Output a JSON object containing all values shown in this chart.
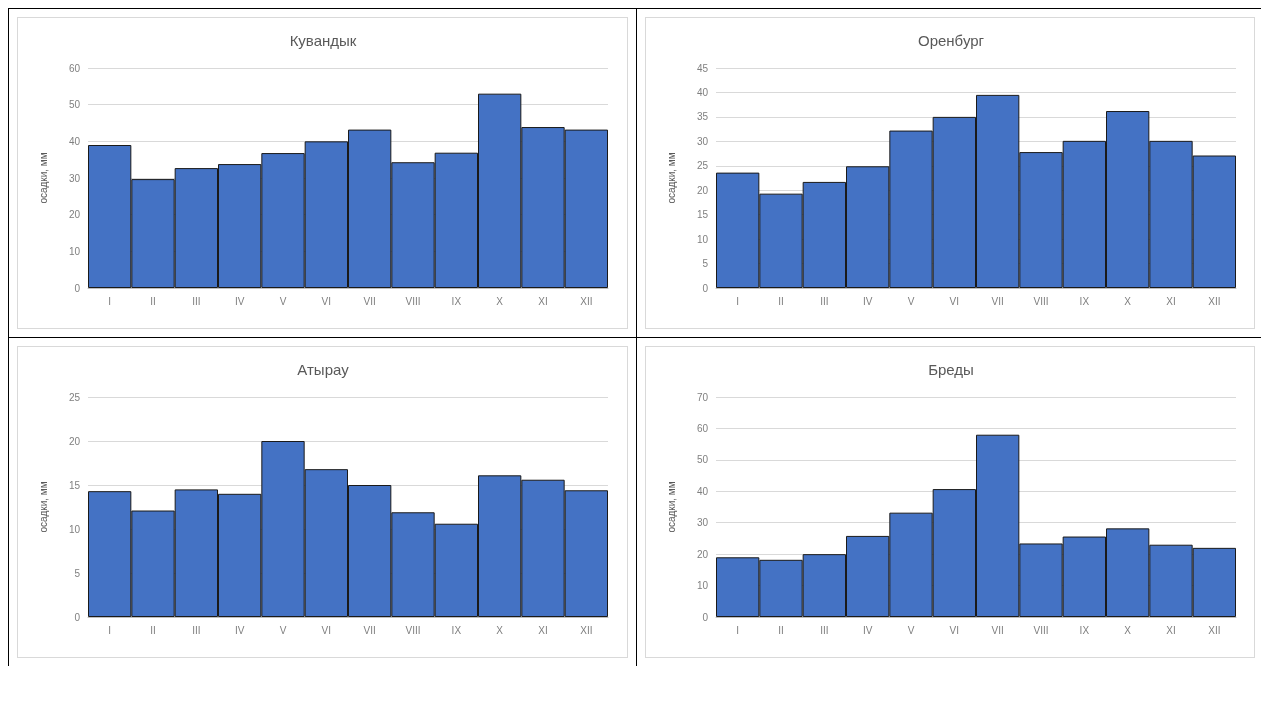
{
  "chart_data": [
    {
      "type": "bar",
      "title": "Кувандык",
      "ylabel": "осадки, мм",
      "categories": [
        "I",
        "II",
        "III",
        "IV",
        "V",
        "VI",
        "VII",
        "VIII",
        "IX",
        "X",
        "XI",
        "XII"
      ],
      "values": [
        39,
        29.7,
        32.7,
        33.8,
        36.8,
        40,
        43.2,
        34.3,
        36.9,
        53,
        43.9,
        43.2
      ],
      "color": "#4472c4",
      "ylim": [
        0,
        60
      ],
      "yticks": [
        0,
        10,
        20,
        30,
        40,
        50,
        60
      ],
      "grid": "y"
    },
    {
      "type": "bar",
      "title": "Оренбург",
      "ylabel": "осадки, мм",
      "categories": [
        "I",
        "II",
        "III",
        "IV",
        "V",
        "VI",
        "VII",
        "VIII",
        "IX",
        "X",
        "XI",
        "XII"
      ],
      "values": [
        23.6,
        19.3,
        21.7,
        24.9,
        32.2,
        35,
        39.5,
        27.8,
        30.1,
        36.2,
        30.1,
        27.1
      ],
      "color": "#4472c4",
      "ylim": [
        0,
        45
      ],
      "yticks": [
        0,
        5,
        10,
        15,
        20,
        25,
        30,
        35,
        40,
        45
      ],
      "grid": "y"
    },
    {
      "type": "bar",
      "title": "Атырау",
      "ylabel": "осадки, мм",
      "categories": [
        "I",
        "II",
        "III",
        "IV",
        "V",
        "VI",
        "VII",
        "VIII",
        "IX",
        "X",
        "XI",
        "XII"
      ],
      "values": [
        14.3,
        12.1,
        14.5,
        14,
        20,
        16.8,
        15,
        11.9,
        10.6,
        16.1,
        15.6,
        14.4
      ],
      "color": "#4472c4",
      "ylim": [
        0,
        25
      ],
      "yticks": [
        0,
        5,
        10,
        15,
        20,
        25
      ],
      "grid": "y"
    },
    {
      "type": "bar",
      "title": "Бреды",
      "ylabel": "осадки, мм",
      "categories": [
        "I",
        "II",
        "III",
        "IV",
        "V",
        "VI",
        "VII",
        "VIII",
        "IX",
        "X",
        "XI",
        "XII"
      ],
      "values": [
        19,
        18.2,
        20,
        25.8,
        33.2,
        40.7,
        58,
        23.4,
        25.6,
        28.2,
        23,
        22
      ],
      "color": "#4472c4",
      "ylim": [
        0,
        70
      ],
      "yticks": [
        0,
        10,
        20,
        30,
        40,
        50,
        60,
        70
      ],
      "grid": "y"
    }
  ]
}
